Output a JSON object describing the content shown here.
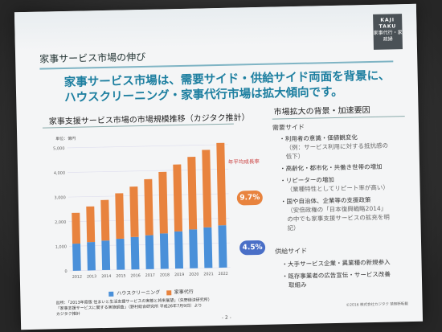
{
  "brand": {
    "line1": "KAJI",
    "line2": "TAKU",
    "line3": "家事代行・家政婦"
  },
  "slide": {
    "section_title": "家事サービス市場の伸び",
    "headline_line1": "家事サービス市場は、需要サイド・供給サイド両面を背景に、",
    "headline_line2": "ハウスクリーニング・家事代行市場は拡大傾向です。",
    "source": [
      "出所：「2013年度版 住まいと生活支援サービスの実態と将来展望」（矢野経済研究所）",
      "「家事支援サービスに関する実施調査」（野村総合研究所 平成26年7月9日）より",
      "カジタク推計"
    ],
    "copyright": "©2016 株式会社カジタク 禁無断転載",
    "page": "- 2 -"
  },
  "chart_data": {
    "type": "bar",
    "title": "家事支援サービス市場の市場規模推移（カジタク推計）",
    "unit_label": "単位：億円",
    "categories": [
      "2012",
      "2013",
      "2014",
      "2015",
      "2016",
      "2017",
      "2018",
      "2019",
      "2020",
      "2021",
      "2022"
    ],
    "series": [
      {
        "name": "ハウスクリーニング",
        "values": [
          1100,
          1150,
          1200,
          1260,
          1320,
          1380,
          1440,
          1510,
          1580,
          1650,
          1720
        ]
      },
      {
        "name": "家事代行",
        "values": [
          1250,
          1450,
          1650,
          1850,
          2050,
          2280,
          2500,
          2720,
          2950,
          3150,
          3350
        ]
      }
    ],
    "ylim": [
      0,
      5000
    ],
    "yticks": [
      0,
      1000,
      2000,
      3000,
      4000,
      5000
    ],
    "stacked": true,
    "cagr_label": "年平均成長率",
    "cagr": {
      "housekeeping": "9.7%",
      "cleaning": "4.5%"
    },
    "colors": {
      "cleaning": "#4a90d9",
      "housekeeping": "#e8833e"
    }
  },
  "right_panel": {
    "title": "市場拡大の背景・加速要因",
    "demand_heading": "需要サイド",
    "demand": [
      "・利用者の意識・価値観変化",
      "・高齢化・都市化・共働き世帯の増加",
      "・リピーターの増加",
      "・国や自治体、企業等の支援政策"
    ],
    "demand_sub": [
      "（例：サービス利用に対する抵抗感の",
      "低下）",
      "（業種特性としてリピート率が高い）",
      "（安倍政権の「日本復興戦略2014」",
      "の中でも家事支援サービスの拡充を明",
      "記）"
    ],
    "supply_heading": "供給サイド",
    "supply": [
      "・大手サービス企業・異業種の新規参入",
      "・既存事業者の広告宣伝・サービス改善"
    ],
    "supply_sub": [
      "取組み"
    ]
  }
}
